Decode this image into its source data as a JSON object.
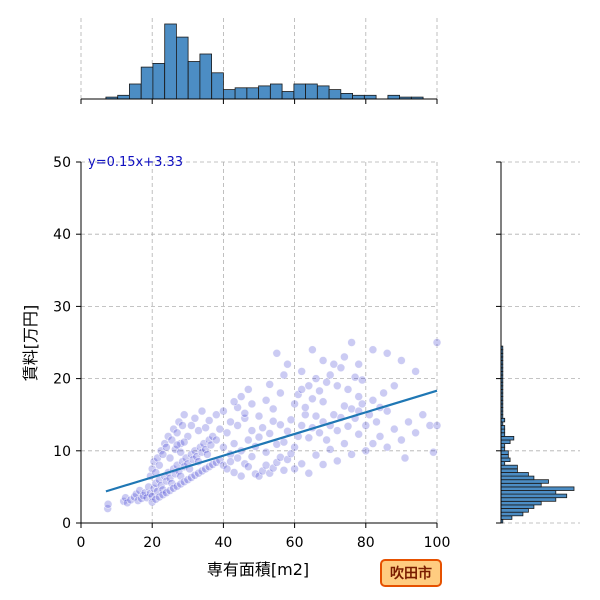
{
  "chart_data": {
    "type": "scatter",
    "xlabel": "専有面積[m2]",
    "ylabel": "賃料[万円]",
    "xlim": [
      0,
      100
    ],
    "ylim": [
      0,
      50
    ],
    "x_ticks": [
      "0",
      "20",
      "40",
      "60",
      "80",
      "100"
    ],
    "y_ticks": [
      "0",
      "10",
      "20",
      "30",
      "40",
      "50"
    ],
    "grid": true,
    "regression": {
      "slope": 0.15,
      "intercept": 3.33,
      "x_range": [
        7,
        100
      ],
      "label": "y=0.15x+3.33"
    },
    "badge": "吹田市",
    "x_histogram": {
      "bin_start": 7,
      "bin_width": 3.3,
      "counts": [
        1,
        2,
        8,
        17,
        19,
        40,
        33,
        20,
        24,
        14,
        5,
        6,
        6,
        7,
        8,
        4,
        8,
        8,
        7,
        5,
        3,
        2,
        2,
        0,
        2,
        1,
        1
      ]
    },
    "y_histogram": {
      "bin_start": 0,
      "bin_width": 0.5,
      "counts": [
        1,
        6,
        12,
        15,
        18,
        22,
        30,
        36,
        30,
        40,
        22,
        26,
        18,
        15,
        9,
        9,
        2,
        5,
        4,
        4,
        2,
        2,
        5,
        7,
        2,
        2,
        2,
        1,
        2,
        1,
        1,
        1,
        1,
        1,
        1,
        1,
        1,
        1,
        1,
        1,
        1,
        1,
        1,
        1,
        1,
        1,
        1,
        1,
        1
      ]
    },
    "points": [
      [
        7.5,
        2.0
      ],
      [
        7.6,
        2.6
      ],
      [
        12.0,
        3.0
      ],
      [
        12.5,
        3.5
      ],
      [
        13.0,
        2.8
      ],
      [
        14.0,
        3.2
      ],
      [
        15.0,
        3.6
      ],
      [
        15.5,
        4.0
      ],
      [
        16.0,
        3.1
      ],
      [
        16.5,
        4.5
      ],
      [
        17.0,
        3.4
      ],
      [
        17.5,
        3.8
      ],
      [
        18.0,
        4.2
      ],
      [
        18.5,
        3.5
      ],
      [
        19.0,
        5.0
      ],
      [
        19.5,
        4.1
      ],
      [
        20.0,
        3.7
      ],
      [
        20.5,
        4.8
      ],
      [
        21.0,
        5.5
      ],
      [
        21.5,
        4.4
      ],
      [
        22.0,
        6.0
      ],
      [
        22.5,
        5.2
      ],
      [
        23.0,
        4.6
      ],
      [
        23.5,
        6.5
      ],
      [
        24.0,
        5.8
      ],
      [
        24.5,
        7.0
      ],
      [
        25.0,
        6.2
      ],
      [
        25.5,
        5.5
      ],
      [
        26.0,
        7.5
      ],
      [
        26.5,
        6.8
      ],
      [
        27.0,
        8.0
      ],
      [
        27.5,
        7.2
      ],
      [
        28.0,
        6.5
      ],
      [
        28.5,
        8.5
      ],
      [
        29.0,
        7.8
      ],
      [
        29.5,
        9.0
      ],
      [
        30.0,
        8.2
      ],
      [
        30.5,
        7.5
      ],
      [
        31.0,
        9.5
      ],
      [
        31.5,
        8.8
      ],
      [
        32.0,
        10.0
      ],
      [
        32.5,
        9.2
      ],
      [
        33.0,
        8.5
      ],
      [
        33.5,
        10.5
      ],
      [
        34.0,
        9.8
      ],
      [
        34.5,
        11.0
      ],
      [
        35.0,
        10.2
      ],
      [
        35.5,
        9.5
      ],
      [
        36.0,
        11.5
      ],
      [
        36.5,
        10.8
      ],
      [
        19.5,
        6.5
      ],
      [
        20.0,
        7.5
      ],
      [
        20.5,
        8.5
      ],
      [
        21.0,
        7.0
      ],
      [
        21.5,
        9.0
      ],
      [
        22.0,
        8.0
      ],
      [
        22.5,
        10.0
      ],
      [
        23.0,
        9.5
      ],
      [
        23.5,
        11.0
      ],
      [
        24.0,
        10.5
      ],
      [
        24.5,
        12.0
      ],
      [
        25.0,
        9.0
      ],
      [
        25.5,
        11.5
      ],
      [
        26.0,
        13.0
      ],
      [
        26.5,
        10.2
      ],
      [
        27.0,
        12.5
      ],
      [
        27.5,
        14.0
      ],
      [
        28.0,
        11.0
      ],
      [
        28.5,
        13.5
      ],
      [
        29.0,
        15.0
      ],
      [
        20.0,
        2.9
      ],
      [
        21.0,
        3.3
      ],
      [
        22.0,
        3.6
      ],
      [
        23.0,
        3.9
      ],
      [
        24.0,
        4.2
      ],
      [
        25.0,
        4.5
      ],
      [
        26.0,
        4.8
      ],
      [
        27.0,
        5.1
      ],
      [
        28.0,
        5.4
      ],
      [
        29.0,
        5.7
      ],
      [
        30.0,
        6.0
      ],
      [
        31.0,
        6.3
      ],
      [
        32.0,
        6.6
      ],
      [
        33.0,
        6.9
      ],
      [
        34.0,
        7.2
      ],
      [
        35.0,
        7.5
      ],
      [
        36.0,
        7.8
      ],
      [
        37.0,
        8.1
      ],
      [
        38.0,
        8.4
      ],
      [
        39.0,
        8.7
      ],
      [
        37.0,
        12.0
      ],
      [
        38.0,
        11.5
      ],
      [
        39.0,
        13.0
      ],
      [
        40.0,
        10.5
      ],
      [
        41.0,
        12.5
      ],
      [
        42.0,
        9.5
      ],
      [
        43.0,
        11.0
      ],
      [
        44.0,
        13.5
      ],
      [
        45.0,
        10.0
      ],
      [
        46.0,
        14.5
      ],
      [
        40.0,
        8.0
      ],
      [
        41.0,
        7.5
      ],
      [
        42.0,
        8.5
      ],
      [
        43.0,
        7.0
      ],
      [
        44.0,
        9.0
      ],
      [
        45.0,
        6.5
      ],
      [
        46.0,
        8.2
      ],
      [
        47.0,
        7.8
      ],
      [
        48.0,
        9.2
      ],
      [
        49.0,
        6.8
      ],
      [
        38.0,
        15.0
      ],
      [
        40.0,
        15.5
      ],
      [
        42.0,
        14.0
      ],
      [
        44.0,
        16.0
      ],
      [
        46.0,
        15.2
      ],
      [
        48.0,
        16.5
      ],
      [
        50.0,
        14.8
      ],
      [
        52.0,
        17.0
      ],
      [
        54.0,
        15.8
      ],
      [
        56.0,
        18.0
      ],
      [
        47.0,
        11.5
      ],
      [
        48.0,
        12.8
      ],
      [
        49.0,
        10.6
      ],
      [
        50.0,
        11.9
      ],
      [
        51.0,
        13.2
      ],
      [
        52.0,
        9.8
      ],
      [
        53.0,
        12.4
      ],
      [
        54.0,
        14.1
      ],
      [
        55.0,
        10.9
      ],
      [
        56.0,
        13.6
      ],
      [
        50.0,
        6.5
      ],
      [
        51.0,
        7.2
      ],
      [
        52.0,
        8.0
      ],
      [
        53.0,
        6.9
      ],
      [
        54.0,
        7.6
      ],
      [
        55.0,
        8.4
      ],
      [
        56.0,
        9.1
      ],
      [
        57.0,
        7.3
      ],
      [
        58.0,
        8.8
      ],
      [
        59.0,
        9.6
      ],
      [
        57.0,
        11.2
      ],
      [
        58.0,
        12.7
      ],
      [
        59.0,
        14.3
      ],
      [
        60.0,
        10.5
      ],
      [
        61.0,
        12.0
      ],
      [
        62.0,
        13.5
      ],
      [
        63.0,
        15.0
      ],
      [
        64.0,
        11.8
      ],
      [
        65.0,
        13.2
      ],
      [
        66.0,
        14.8
      ],
      [
        60.0,
        16.5
      ],
      [
        61.0,
        17.8
      ],
      [
        62.0,
        18.5
      ],
      [
        63.0,
        16.0
      ],
      [
        64.0,
        19.0
      ],
      [
        65.0,
        17.2
      ],
      [
        66.0,
        20.0
      ],
      [
        67.0,
        18.3
      ],
      [
        68.0,
        16.8
      ],
      [
        69.0,
        19.5
      ],
      [
        60.0,
        7.5
      ],
      [
        62.0,
        8.2
      ],
      [
        64.0,
        6.9
      ],
      [
        66.0,
        9.4
      ],
      [
        68.0,
        8.1
      ],
      [
        70.0,
        10.2
      ],
      [
        72.0,
        8.6
      ],
      [
        74.0,
        11.0
      ],
      [
        76.0,
        9.5
      ],
      [
        78.0,
        12.3
      ],
      [
        67.0,
        12.5
      ],
      [
        68.0,
        14.0
      ],
      [
        69.0,
        11.5
      ],
      [
        70.0,
        13.5
      ],
      [
        71.0,
        15.0
      ],
      [
        72.0,
        12.8
      ],
      [
        73.0,
        14.6
      ],
      [
        74.0,
        16.2
      ],
      [
        75.0,
        13.4
      ],
      [
        76.0,
        15.8
      ],
      [
        70.0,
        20.5
      ],
      [
        71.0,
        22.0
      ],
      [
        72.0,
        19.0
      ],
      [
        73.0,
        21.5
      ],
      [
        74.0,
        23.0
      ],
      [
        75.0,
        18.5
      ],
      [
        76.0,
        25.0
      ],
      [
        77.0,
        20.2
      ],
      [
        78.0,
        17.5
      ],
      [
        79.0,
        19.8
      ],
      [
        77.0,
        14.5
      ],
      [
        78.0,
        15.5
      ],
      [
        79.0,
        16.5
      ],
      [
        80.0,
        13.5
      ],
      [
        81.0,
        15.0
      ],
      [
        82.0,
        17.0
      ],
      [
        83.0,
        14.0
      ],
      [
        84.0,
        16.0
      ],
      [
        85.0,
        18.0
      ],
      [
        86.0,
        15.5
      ],
      [
        80.0,
        10.0
      ],
      [
        82.0,
        11.0
      ],
      [
        84.0,
        12.0
      ],
      [
        86.0,
        10.5
      ],
      [
        88.0,
        13.0
      ],
      [
        90.0,
        11.5
      ],
      [
        92.0,
        14.0
      ],
      [
        94.0,
        12.5
      ],
      [
        96.0,
        15.0
      ],
      [
        98.0,
        13.5
      ],
      [
        78.0,
        22.0
      ],
      [
        82.0,
        24.0
      ],
      [
        86.0,
        23.5
      ],
      [
        90.0,
        22.5
      ],
      [
        94.0,
        21.0
      ],
      [
        100.0,
        25.0
      ],
      [
        91.0,
        9.0
      ],
      [
        99.0,
        9.8
      ],
      [
        100.0,
        13.5
      ],
      [
        88.0,
        19.0
      ],
      [
        55.0,
        23.5
      ],
      [
        58.0,
        22.0
      ],
      [
        62.0,
        21.0
      ],
      [
        65.0,
        24.0
      ],
      [
        68.0,
        22.5
      ],
      [
        45.0,
        17.5
      ],
      [
        47.0,
        18.5
      ],
      [
        43.0,
        16.8
      ],
      [
        53.0,
        19.2
      ],
      [
        57.0,
        20.5
      ],
      [
        30.0,
        12.0
      ],
      [
        31.0,
        13.5
      ],
      [
        32.0,
        14.5
      ],
      [
        33.0,
        12.8
      ],
      [
        34.0,
        15.5
      ],
      [
        35.0,
        13.2
      ],
      [
        36.0,
        14.2
      ],
      [
        29.0,
        11.2
      ],
      [
        28.0,
        9.8
      ],
      [
        27.0,
        10.8
      ]
    ]
  }
}
